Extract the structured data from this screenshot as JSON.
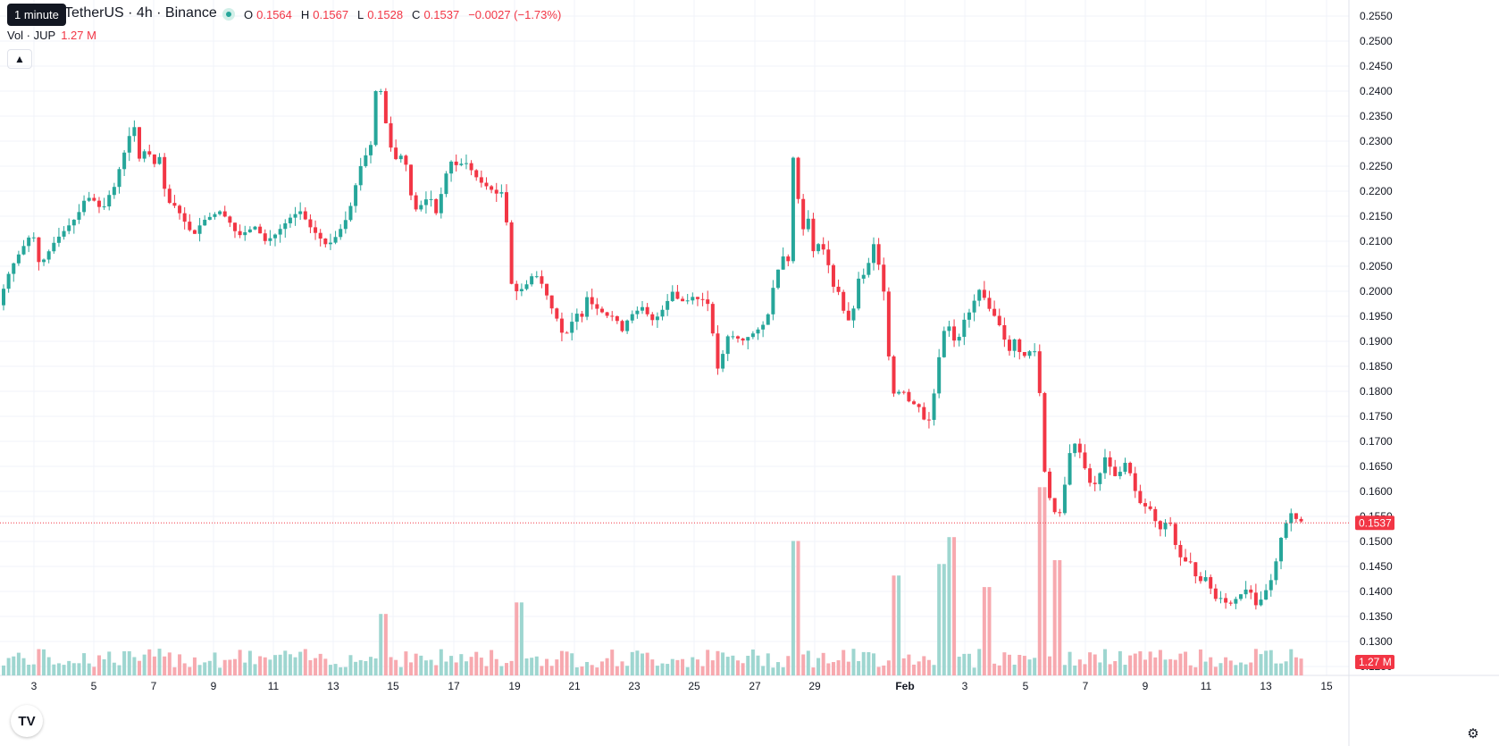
{
  "header": {
    "tooltip": "1 minute",
    "symbol": "TetherUS · 4h · Binance",
    "ohlc": {
      "o_label": "O",
      "o": "0.1564",
      "h_label": "H",
      "h": "0.1567",
      "l_label": "L",
      "l": "0.1528",
      "c_label": "C",
      "c": "0.1537",
      "change": "−0.0027 (−1.73%)"
    },
    "volume_label": "Vol · JUP",
    "volume_value": "1.27 M",
    "collapse_icon": "chevron-up-icon"
  },
  "colors": {
    "up": "#26a69a",
    "down": "#f23645",
    "up_vol": "#9ed6d0",
    "down_vol": "#f7a9af",
    "grid": "#f0f3fa",
    "text": "#131722"
  },
  "chart_data": {
    "type": "candlestick",
    "x_labels": [
      "3",
      "5",
      "7",
      "9",
      "11",
      "13",
      "15",
      "17",
      "19",
      "21",
      "23",
      "25",
      "27",
      "29",
      "Feb",
      "3",
      "5",
      "7",
      "9",
      "11",
      "13",
      "15"
    ],
    "y_ticks": [
      "0.2550",
      "0.2500",
      "0.2450",
      "0.2400",
      "0.2350",
      "0.2300",
      "0.2250",
      "0.2200",
      "0.2150",
      "0.2100",
      "0.2050",
      "0.2000",
      "0.1950",
      "0.1900",
      "0.1850",
      "0.1800",
      "0.1750",
      "0.1700",
      "0.1650",
      "0.1600",
      "0.1550",
      "0.1500",
      "0.1450",
      "0.1400",
      "0.1350",
      "0.1300",
      "0.1250"
    ],
    "ylim": [
      0.1225,
      0.2575
    ],
    "last_price": "0.1537",
    "last_volume": "1.27 M",
    "grid": true,
    "close_points": [
      [
        0,
        0.196
      ],
      [
        5,
        0.199
      ],
      [
        12,
        0.203
      ],
      [
        20,
        0.206
      ],
      [
        30,
        0.209
      ],
      [
        40,
        0.212
      ],
      [
        48,
        0.205
      ],
      [
        55,
        0.207
      ],
      [
        65,
        0.21
      ],
      [
        75,
        0.212
      ],
      [
        90,
        0.215
      ],
      [
        100,
        0.219
      ],
      [
        110,
        0.218
      ],
      [
        118,
        0.216
      ],
      [
        125,
        0.219
      ],
      [
        132,
        0.221
      ],
      [
        138,
        0.225
      ],
      [
        145,
        0.229
      ],
      [
        150,
        0.232
      ],
      [
        155,
        0.233
      ],
      [
        160,
        0.226
      ],
      [
        168,
        0.229
      ],
      [
        175,
        0.225
      ],
      [
        182,
        0.227
      ],
      [
        190,
        0.218
      ],
      [
        200,
        0.217
      ],
      [
        210,
        0.214
      ],
      [
        220,
        0.211
      ],
      [
        230,
        0.214
      ],
      [
        240,
        0.215
      ],
      [
        250,
        0.216
      ],
      [
        260,
        0.214
      ],
      [
        270,
        0.211
      ],
      [
        280,
        0.212
      ],
      [
        290,
        0.213
      ],
      [
        300,
        0.21
      ],
      [
        310,
        0.211
      ],
      [
        320,
        0.213
      ],
      [
        330,
        0.215
      ],
      [
        340,
        0.216
      ],
      [
        350,
        0.213
      ],
      [
        360,
        0.211
      ],
      [
        370,
        0.209
      ],
      [
        380,
        0.211
      ],
      [
        390,
        0.214
      ],
      [
        398,
        0.218
      ],
      [
        405,
        0.224
      ],
      [
        412,
        0.227
      ],
      [
        418,
        0.228
      ],
      [
        424,
        0.24
      ],
      [
        430,
        0.24
      ],
      [
        436,
        0.233
      ],
      [
        442,
        0.228
      ],
      [
        448,
        0.226
      ],
      [
        456,
        0.228
      ],
      [
        462,
        0.22
      ],
      [
        470,
        0.216
      ],
      [
        478,
        0.218
      ],
      [
        485,
        0.219
      ],
      [
        493,
        0.215
      ],
      [
        500,
        0.222
      ],
      [
        508,
        0.226
      ],
      [
        516,
        0.225
      ],
      [
        524,
        0.226
      ],
      [
        532,
        0.224
      ],
      [
        540,
        0.222
      ],
      [
        548,
        0.221
      ],
      [
        556,
        0.22
      ],
      [
        563,
        0.219
      ],
      [
        568,
        0.221
      ],
      [
        572,
        0.21
      ],
      [
        577,
        0.2
      ],
      [
        584,
        0.2
      ],
      [
        592,
        0.201
      ],
      [
        598,
        0.203
      ],
      [
        606,
        0.203
      ],
      [
        614,
        0.2
      ],
      [
        620,
        0.197
      ],
      [
        626,
        0.195
      ],
      [
        634,
        0.191
      ],
      [
        640,
        0.192
      ],
      [
        648,
        0.196
      ],
      [
        654,
        0.194
      ],
      [
        660,
        0.199
      ],
      [
        668,
        0.197
      ],
      [
        676,
        0.196
      ],
      [
        684,
        0.195
      ],
      [
        692,
        0.195
      ],
      [
        700,
        0.192
      ],
      [
        708,
        0.195
      ],
      [
        716,
        0.196
      ],
      [
        724,
        0.197
      ],
      [
        732,
        0.194
      ],
      [
        740,
        0.195
      ],
      [
        748,
        0.197
      ],
      [
        756,
        0.2
      ],
      [
        764,
        0.198
      ],
      [
        772,
        0.198
      ],
      [
        780,
        0.199
      ],
      [
        788,
        0.198
      ],
      [
        794,
        0.199
      ],
      [
        800,
        0.194
      ],
      [
        806,
        0.184
      ],
      [
        812,
        0.187
      ],
      [
        818,
        0.191
      ],
      [
        826,
        0.191
      ],
      [
        834,
        0.19
      ],
      [
        842,
        0.191
      ],
      [
        850,
        0.192
      ],
      [
        856,
        0.193
      ],
      [
        862,
        0.194
      ],
      [
        868,
        0.2
      ],
      [
        874,
        0.204
      ],
      [
        880,
        0.207
      ],
      [
        886,
        0.206
      ],
      [
        890,
        0.229
      ],
      [
        896,
        0.22
      ],
      [
        902,
        0.212
      ],
      [
        908,
        0.215
      ],
      [
        914,
        0.208
      ],
      [
        922,
        0.21
      ],
      [
        930,
        0.206
      ],
      [
        936,
        0.201
      ],
      [
        942,
        0.2
      ],
      [
        948,
        0.196
      ],
      [
        954,
        0.194
      ],
      [
        960,
        0.197
      ],
      [
        966,
        0.204
      ],
      [
        972,
        0.203
      ],
      [
        978,
        0.207
      ],
      [
        984,
        0.211
      ],
      [
        988,
        0.204
      ],
      [
        994,
        0.199
      ],
      [
        1000,
        0.183
      ],
      [
        1006,
        0.178
      ],
      [
        1012,
        0.181
      ],
      [
        1018,
        0.179
      ],
      [
        1024,
        0.177
      ],
      [
        1030,
        0.178
      ],
      [
        1036,
        0.175
      ],
      [
        1042,
        0.173
      ],
      [
        1048,
        0.178
      ],
      [
        1054,
        0.186
      ],
      [
        1060,
        0.192
      ],
      [
        1066,
        0.193
      ],
      [
        1072,
        0.19
      ],
      [
        1078,
        0.191
      ],
      [
        1084,
        0.195
      ],
      [
        1090,
        0.196
      ],
      [
        1096,
        0.199
      ],
      [
        1102,
        0.201
      ],
      [
        1108,
        0.197
      ],
      [
        1114,
        0.196
      ],
      [
        1120,
        0.194
      ],
      [
        1126,
        0.192
      ],
      [
        1132,
        0.187
      ],
      [
        1138,
        0.191
      ],
      [
        1144,
        0.188
      ],
      [
        1150,
        0.187
      ],
      [
        1156,
        0.188
      ],
      [
        1162,
        0.188
      ],
      [
        1166,
        0.186
      ],
      [
        1170,
        0.168
      ],
      [
        1176,
        0.16
      ],
      [
        1180,
        0.158
      ],
      [
        1186,
        0.155
      ],
      [
        1192,
        0.156
      ],
      [
        1198,
        0.165
      ],
      [
        1204,
        0.17
      ],
      [
        1210,
        0.169
      ],
      [
        1216,
        0.166
      ],
      [
        1222,
        0.162
      ],
      [
        1228,
        0.161
      ],
      [
        1234,
        0.163
      ],
      [
        1240,
        0.167
      ],
      [
        1246,
        0.165
      ],
      [
        1252,
        0.163
      ],
      [
        1258,
        0.164
      ],
      [
        1264,
        0.166
      ],
      [
        1270,
        0.163
      ],
      [
        1276,
        0.159
      ],
      [
        1282,
        0.157
      ],
      [
        1288,
        0.157
      ],
      [
        1294,
        0.156
      ],
      [
        1300,
        0.152
      ],
      [
        1306,
        0.153
      ],
      [
        1312,
        0.155
      ],
      [
        1318,
        0.15
      ],
      [
        1324,
        0.147
      ],
      [
        1330,
        0.146
      ],
      [
        1336,
        0.146
      ],
      [
        1342,
        0.143
      ],
      [
        1348,
        0.142
      ],
      [
        1354,
        0.143
      ],
      [
        1360,
        0.14
      ],
      [
        1366,
        0.138
      ],
      [
        1372,
        0.139
      ],
      [
        1378,
        0.137
      ],
      [
        1384,
        0.138
      ],
      [
        1390,
        0.139
      ],
      [
        1396,
        0.14
      ],
      [
        1402,
        0.141
      ],
      [
        1408,
        0.137
      ],
      [
        1414,
        0.138
      ],
      [
        1420,
        0.14
      ],
      [
        1426,
        0.142
      ],
      [
        1432,
        0.146
      ],
      [
        1438,
        0.151
      ],
      [
        1444,
        0.154
      ],
      [
        1450,
        0.156
      ],
      [
        1456,
        0.154
      ]
    ],
    "volume_spikes": [
      [
        888,
        0.35
      ],
      [
        1063,
        0.36
      ],
      [
        1165,
        0.49
      ],
      [
        1182,
        0.3
      ],
      [
        577,
        0.19
      ],
      [
        1002,
        0.26
      ],
      [
        1103,
        0.23
      ],
      [
        1050,
        0.29
      ],
      [
        427,
        0.16
      ]
    ]
  }
}
